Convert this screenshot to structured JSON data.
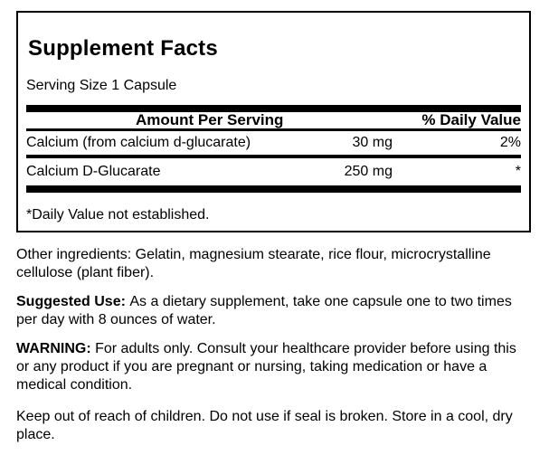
{
  "label": {
    "title": "Supplement Facts",
    "serving_size": "Serving Size 1 Capsule",
    "table": {
      "amount_header": "Amount Per Serving",
      "dv_header": "% Daily Value",
      "rows": [
        {
          "name": "Calcium (from calcium d-glucarate)",
          "amount": "30 mg",
          "dv": "2%"
        },
        {
          "name": "Calcium D-Glucarate",
          "amount": "250 mg",
          "dv": "*"
        }
      ],
      "footnote": "*Daily Value not established."
    }
  },
  "info": {
    "paragraphs": [
      {
        "bold": "",
        "text": "Other ingredients: Gelatin, magnesium stearate, rice flour, microcrystalline cellulose (plant fiber)."
      },
      {
        "bold": "Suggested Use:",
        "text": "As a dietary supplement, take one capsule one to two times per day with 8 ounces of water."
      },
      {
        "bold": "WARNING:",
        "text": "For adults only. Consult your healthcare provider before using this or any product if you are pregnant or nursing, taking medication or have a medical condition."
      },
      {
        "bold": "",
        "text": "Keep out of reach of children. Do not use if seal is broken. Store in a cool, dry place."
      }
    ]
  },
  "colors": {
    "text": "#000000",
    "background": "#ffffff",
    "border": "#000000",
    "bar": "#000000"
  }
}
